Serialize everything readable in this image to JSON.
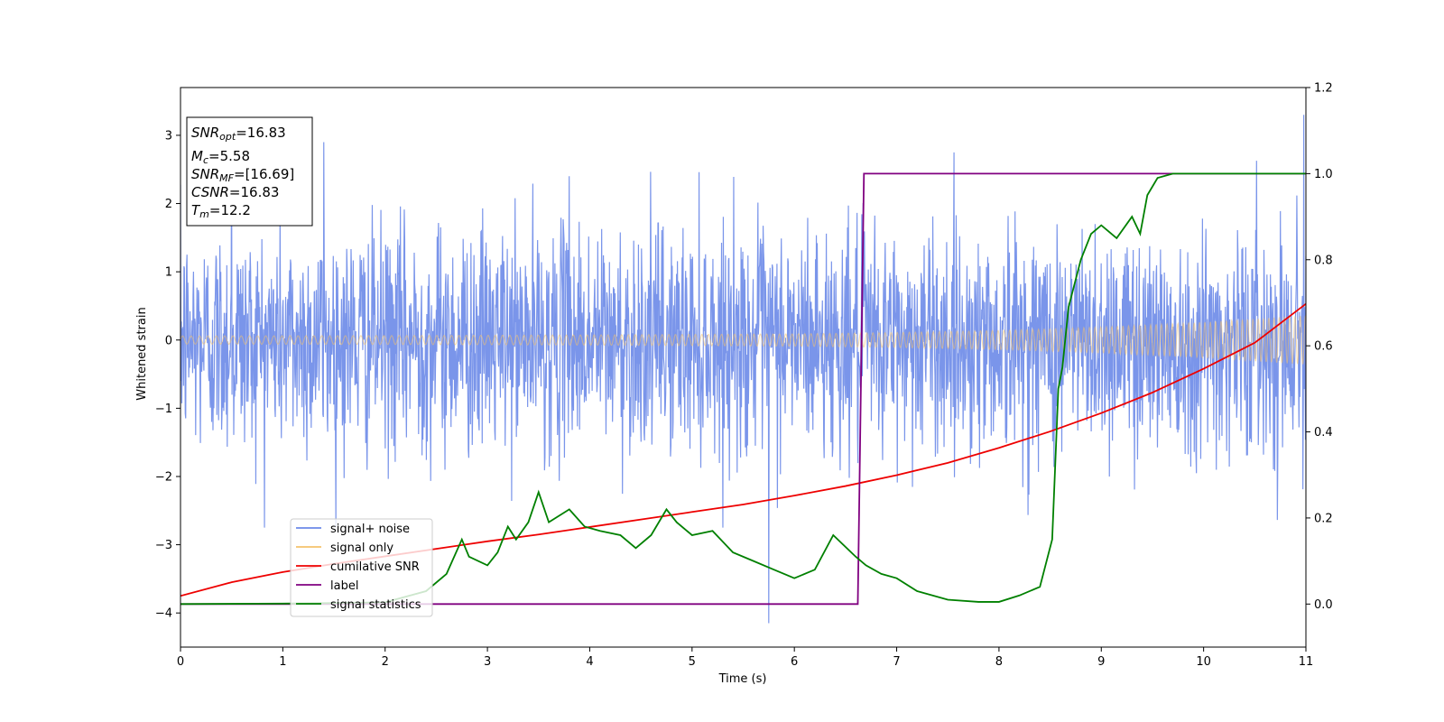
{
  "chart_data": {
    "type": "line",
    "title": "",
    "xlabel": "Time (s)",
    "ylabel_left": "Whitened strain",
    "ylabel_right": "",
    "xlim": [
      0,
      11
    ],
    "ylim_left": [
      -4.5,
      3.7
    ],
    "ylim_right": [
      -0.1,
      1.2
    ],
    "x_ticks": [
      0,
      1,
      2,
      3,
      4,
      5,
      6,
      7,
      8,
      9,
      10,
      11
    ],
    "x_tick_labels": [
      "0",
      "1",
      "2",
      "3",
      "4",
      "5",
      "6",
      "7",
      "8",
      "9",
      "10",
      "11"
    ],
    "y_ticks_left": [
      -4,
      -3,
      -2,
      -1,
      0,
      1,
      2,
      3
    ],
    "y_tick_labels_left": [
      "−4",
      "−3",
      "−2",
      "−1",
      "0",
      "1",
      "2",
      "3"
    ],
    "y_ticks_right": [
      0.0,
      0.2,
      0.4,
      0.6,
      0.8,
      1.0,
      1.2
    ],
    "y_tick_labels_right": [
      "0.0",
      "0.2",
      "0.4",
      "0.6",
      "0.8",
      "1.0",
      "1.2"
    ],
    "grid": false,
    "legend_position": "lower-left",
    "colors": {
      "noise": "#6c8ae8",
      "signal": "#f5c26b",
      "csnr": "#ee0000",
      "label": "#800080",
      "stat": "#008000"
    },
    "series": [
      {
        "name": "signal+ noise",
        "axis": "left",
        "description_range": "noise band ~[-2.5, 2.4] with spikes to 3.3 and -4.15",
        "peaks": {
          "x": [
            0.5,
            1.4,
            3.8,
            5.75,
            10.98
          ],
          "y": [
            3.0,
            2.9,
            2.4,
            -4.15,
            3.3
          ]
        }
      },
      {
        "name": "signal only",
        "axis": "left",
        "envelope_x": [
          0,
          2,
          4,
          6,
          7,
          8,
          9,
          10,
          11
        ],
        "envelope_y": [
          0.06,
          0.065,
          0.075,
          0.09,
          0.11,
          0.14,
          0.19,
          0.26,
          0.36
        ]
      },
      {
        "name": "cumilative SNR",
        "axis": "left",
        "x": [
          0,
          0.5,
          1,
          1.5,
          2,
          2.5,
          3,
          3.5,
          4,
          4.5,
          5,
          5.5,
          6,
          6.5,
          7,
          7.5,
          8,
          8.5,
          9,
          9.5,
          10,
          10.5,
          11
        ],
        "y": [
          -3.75,
          -3.55,
          -3.4,
          -3.28,
          -3.17,
          -3.06,
          -2.95,
          -2.85,
          -2.74,
          -2.63,
          -2.52,
          -2.41,
          -2.28,
          -2.14,
          -1.98,
          -1.8,
          -1.58,
          -1.34,
          -1.07,
          -0.77,
          -0.42,
          -0.04,
          0.53
        ]
      },
      {
        "name": "label",
        "axis": "right",
        "x": [
          0,
          6.62,
          6.68,
          11
        ],
        "y": [
          0,
          0,
          1,
          1
        ]
      },
      {
        "name": "signal statistics",
        "axis": "right",
        "x": [
          0,
          1.0,
          2.0,
          2.4,
          2.6,
          2.75,
          2.82,
          3.0,
          3.1,
          3.2,
          3.28,
          3.4,
          3.5,
          3.6,
          3.8,
          3.95,
          4.1,
          4.3,
          4.45,
          4.6,
          4.75,
          4.85,
          5.0,
          5.2,
          5.4,
          5.6,
          5.8,
          6.0,
          6.2,
          6.38,
          6.6,
          6.7,
          6.85,
          7.0,
          7.2,
          7.5,
          7.8,
          8.0,
          8.2,
          8.4,
          8.52,
          8.58,
          8.62,
          8.68,
          8.8,
          8.9,
          9.0,
          9.15,
          9.3,
          9.38,
          9.45,
          9.55,
          9.7,
          10.0,
          10.5,
          11.0
        ],
        "y": [
          0.0,
          0.001,
          0.004,
          0.03,
          0.07,
          0.15,
          0.11,
          0.09,
          0.12,
          0.18,
          0.15,
          0.19,
          0.26,
          0.19,
          0.22,
          0.18,
          0.17,
          0.16,
          0.13,
          0.16,
          0.22,
          0.19,
          0.16,
          0.17,
          0.12,
          0.1,
          0.08,
          0.06,
          0.08,
          0.16,
          0.11,
          0.09,
          0.07,
          0.06,
          0.03,
          0.01,
          0.005,
          0.005,
          0.02,
          0.04,
          0.15,
          0.5,
          0.55,
          0.69,
          0.8,
          0.86,
          0.88,
          0.85,
          0.9,
          0.86,
          0.95,
          0.99,
          1.0,
          1.0,
          1.0,
          1.0
        ]
      }
    ]
  },
  "stats_box": {
    "snr_opt_value": "=16.83",
    "mc_value": "=5.58",
    "snr_mf_value": "=[16.69]",
    "csnr_value": "=16.83",
    "tm_value": "=12.2",
    "snr_main": "SNR",
    "snr_opt_sub": "opt",
    "mc_main": "M",
    "mc_sub": "c",
    "snr_mf_sub": "MF",
    "csnr_main": "CSNR",
    "tm_main": "T",
    "tm_sub": "m"
  },
  "legend": {
    "noise_label": "signal+ noise",
    "signal_label": "signal only",
    "csnr_label": "cumilative SNR",
    "label_label": "label",
    "stat_label": "signal statistics"
  }
}
